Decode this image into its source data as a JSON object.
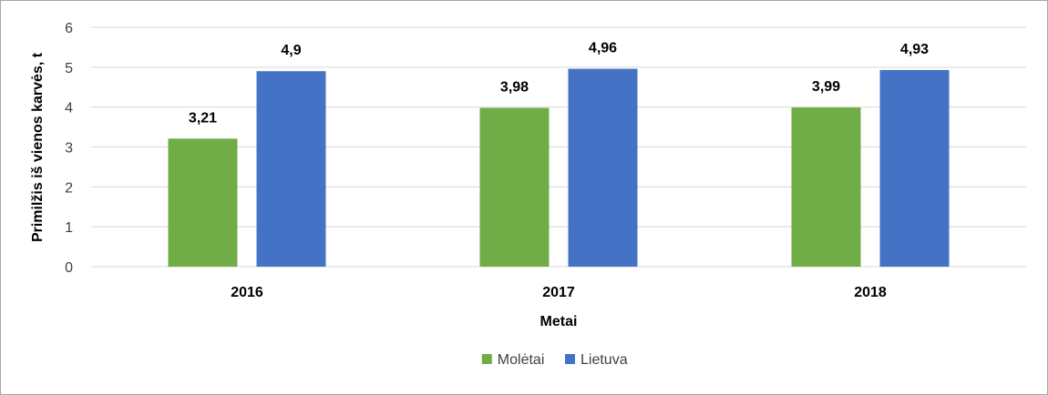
{
  "chart_data": {
    "type": "bar",
    "title": "",
    "xlabel": "Metai",
    "ylabel": "Primilžis iš vienos karvės, t",
    "categories": [
      "2016",
      "2017",
      "2018"
    ],
    "series": [
      {
        "name": "Molėtai",
        "values": [
          3.21,
          3.98,
          3.99
        ],
        "labels": [
          "3,21",
          "3,98",
          "3,99"
        ],
        "color": "#70ad47"
      },
      {
        "name": "Lietuva",
        "values": [
          4.9,
          4.96,
          4.93
        ],
        "labels": [
          "4,9",
          "4,96",
          "4,93"
        ],
        "color": "#4472c4"
      }
    ],
    "ylim": [
      0,
      6
    ],
    "yticks": [
      "0",
      "1",
      "2",
      "3",
      "4",
      "5",
      "6"
    ],
    "grid": true,
    "legend": "bottom-center"
  }
}
